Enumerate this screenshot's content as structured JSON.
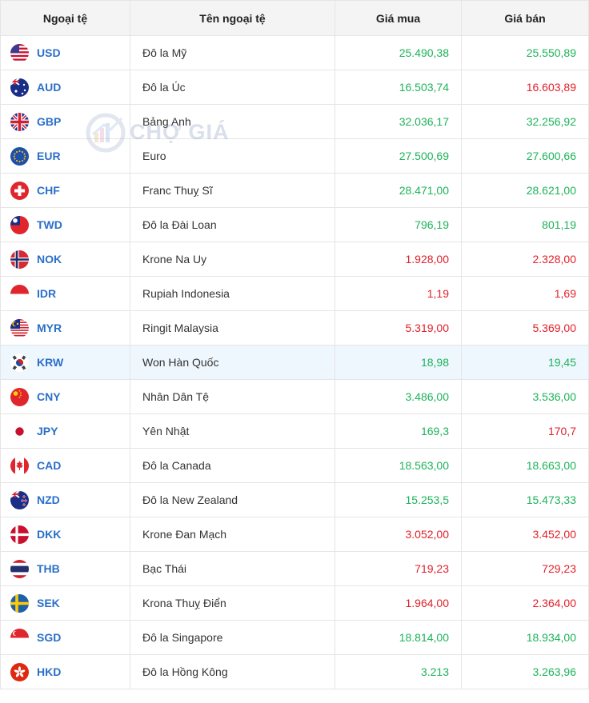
{
  "header": {
    "col_code": "Ngoại tệ",
    "col_name": "Tên ngoại tệ",
    "col_buy": "Giá mua",
    "col_sell": "Giá bán"
  },
  "watermark": {
    "text": "CHỢ GIÁ"
  },
  "colors": {
    "up": "#1db35a",
    "down": "#e2202a",
    "link": "#2a6fc8",
    "highlight_row": "#eef7fd"
  },
  "rows": [
    {
      "code": "USD",
      "name": "Đô la Mỹ",
      "buy": "25.490,38",
      "sell": "25.550,89",
      "buy_trend": "up",
      "sell_trend": "up",
      "flag": "us-flag-icon"
    },
    {
      "code": "AUD",
      "name": "Đô la Úc",
      "buy": "16.503,74",
      "sell": "16.603,89",
      "buy_trend": "up",
      "sell_trend": "down",
      "flag": "au-flag-icon"
    },
    {
      "code": "GBP",
      "name": "Bảng Anh",
      "buy": "32.036,17",
      "sell": "32.256,92",
      "buy_trend": "up",
      "sell_trend": "up",
      "flag": "gb-flag-icon"
    },
    {
      "code": "EUR",
      "name": "Euro",
      "buy": "27.500,69",
      "sell": "27.600,66",
      "buy_trend": "up",
      "sell_trend": "up",
      "flag": "eu-flag-icon"
    },
    {
      "code": "CHF",
      "name": "Franc Thuỵ Sĩ",
      "buy": "28.471,00",
      "sell": "28.621,00",
      "buy_trend": "up",
      "sell_trend": "up",
      "flag": "ch-flag-icon"
    },
    {
      "code": "TWD",
      "name": "Đô la Đài Loan",
      "buy": "796,19",
      "sell": "801,19",
      "buy_trend": "up",
      "sell_trend": "up",
      "flag": "tw-flag-icon"
    },
    {
      "code": "NOK",
      "name": "Krone Na Uy",
      "buy": "1.928,00",
      "sell": "2.328,00",
      "buy_trend": "down",
      "sell_trend": "down",
      "flag": "no-flag-icon"
    },
    {
      "code": "IDR",
      "name": "Rupiah Indonesia",
      "buy": "1,19",
      "sell": "1,69",
      "buy_trend": "down",
      "sell_trend": "down",
      "flag": "id-flag-icon"
    },
    {
      "code": "MYR",
      "name": "Ringit Malaysia",
      "buy": "5.319,00",
      "sell": "5.369,00",
      "buy_trend": "down",
      "sell_trend": "down",
      "flag": "my-flag-icon"
    },
    {
      "code": "KRW",
      "name": "Won Hàn Quốc",
      "buy": "18,98",
      "sell": "19,45",
      "buy_trend": "up",
      "sell_trend": "up",
      "flag": "kr-flag-icon",
      "highlight": true
    },
    {
      "code": "CNY",
      "name": "Nhân Dân Tệ",
      "buy": "3.486,00",
      "sell": "3.536,00",
      "buy_trend": "up",
      "sell_trend": "up",
      "flag": "cn-flag-icon"
    },
    {
      "code": "JPY",
      "name": "Yên Nhật",
      "buy": "169,3",
      "sell": "170,7",
      "buy_trend": "up",
      "sell_trend": "down",
      "flag": "jp-flag-icon"
    },
    {
      "code": "CAD",
      "name": "Đô la Canada",
      "buy": "18.563,00",
      "sell": "18.663,00",
      "buy_trend": "up",
      "sell_trend": "up",
      "flag": "ca-flag-icon"
    },
    {
      "code": "NZD",
      "name": "Đô la New Zealand",
      "buy": "15.253,5",
      "sell": "15.473,33",
      "buy_trend": "up",
      "sell_trend": "up",
      "flag": "nz-flag-icon"
    },
    {
      "code": "DKK",
      "name": "Krone Đan Mạch",
      "buy": "3.052,00",
      "sell": "3.452,00",
      "buy_trend": "down",
      "sell_trend": "down",
      "flag": "dk-flag-icon"
    },
    {
      "code": "THB",
      "name": "Bạc Thái",
      "buy": "719,23",
      "sell": "729,23",
      "buy_trend": "down",
      "sell_trend": "down",
      "flag": "th-flag-icon"
    },
    {
      "code": "SEK",
      "name": "Krona Thuỵ Điển",
      "buy": "1.964,00",
      "sell": "2.364,00",
      "buy_trend": "down",
      "sell_trend": "down",
      "flag": "se-flag-icon"
    },
    {
      "code": "SGD",
      "name": "Đô la Singapore",
      "buy": "18.814,00",
      "sell": "18.934,00",
      "buy_trend": "up",
      "sell_trend": "up",
      "flag": "sg-flag-icon"
    },
    {
      "code": "HKD",
      "name": "Đô la Hồng Kông",
      "buy": "3.213",
      "sell": "3.263,96",
      "buy_trend": "up",
      "sell_trend": "up",
      "flag": "hk-flag-icon"
    }
  ]
}
